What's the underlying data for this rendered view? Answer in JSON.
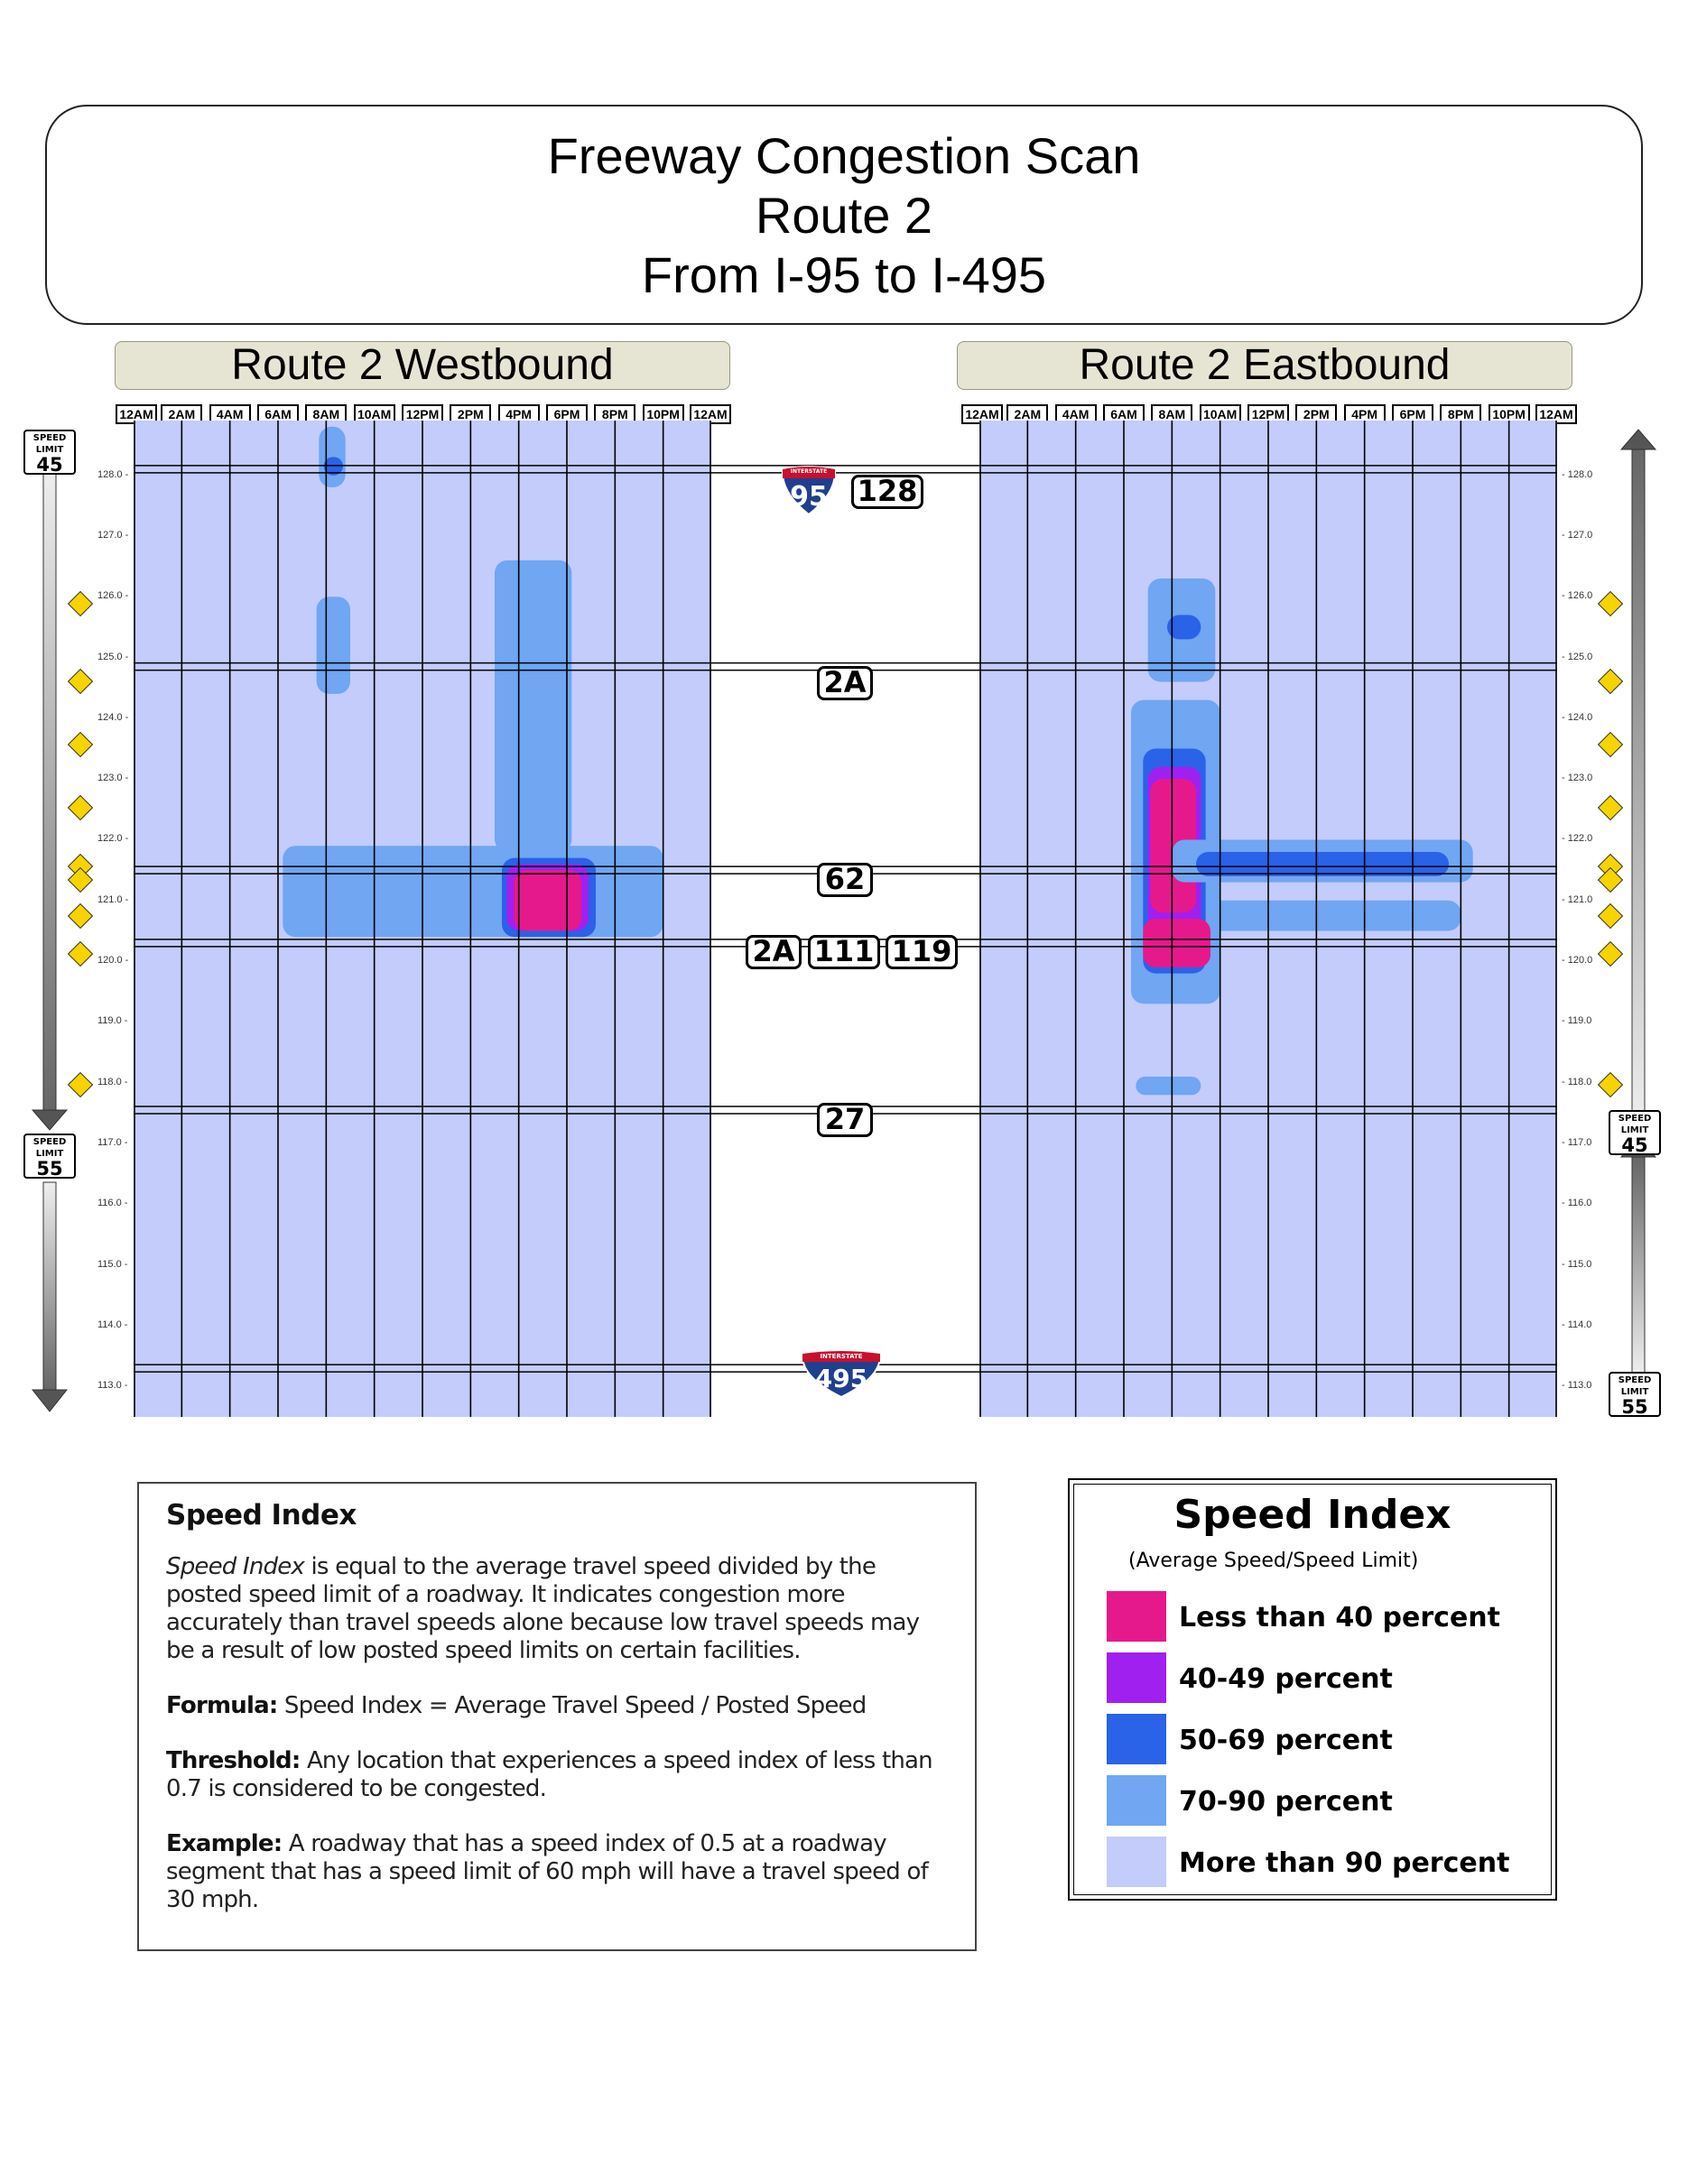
{
  "header": {
    "title_line1": "Freeway Congestion Scan",
    "title_line2": "Route 2",
    "title_line3": "From I-95 to I-495"
  },
  "panels": {
    "westbound_title": "Route 2 Westbound",
    "eastbound_title": "Route 2 Eastbound"
  },
  "route_shields": {
    "i95": "95",
    "i95_banner": "INTERSTATE",
    "i495": "495",
    "i495_banner": "INTERSTATE",
    "exit_128": "128",
    "exit_2a_top": "2A",
    "exit_62": "62",
    "exit_2a_bottom": "2A",
    "exit_111": "111",
    "exit_119": "119",
    "exit_27": "27"
  },
  "speed_signs": {
    "top_label": "SPEED",
    "sub_label": "LIMIT",
    "west_upper": "45",
    "west_lower": "55",
    "east_upper": "45",
    "east_lower": "55"
  },
  "colors": {
    "lt40": "#e6198c",
    "p40_49": "#a020f0",
    "p50_69": "#2a62e8",
    "p70_90": "#70a6f2",
    "gt90": "#c3ccfb",
    "label_bg": "#e6e4d3",
    "interstate_blue": "#1f3f8f",
    "interstate_red": "#c8102e"
  },
  "chart_data": [
    {
      "type": "heatmap",
      "title": "Route 2 Westbound",
      "x_ticks": [
        "12AM",
        "2AM",
        "4AM",
        "6AM",
        "8AM",
        "10AM",
        "12PM",
        "2PM",
        "4PM",
        "6PM",
        "8PM",
        "10PM",
        "12AM"
      ],
      "xlim_hours": [
        0,
        24
      ],
      "milepost_ticks": [
        "128.0",
        "127.0",
        "126.0",
        "125.0",
        "124.0",
        "123.0",
        "122.0",
        "121.0",
        "120.0",
        "119.0",
        "118.0",
        "117.0",
        "116.0",
        "115.0",
        "114.0",
        "113.0"
      ],
      "ylim_milepost": [
        112.5,
        128.9
      ],
      "background_category": "More than 90 percent",
      "congestion_regions": [
        {
          "category": "70-90 percent",
          "hours": [
            7.7,
            8.8
          ],
          "mileposts": [
            127.8,
            128.8
          ]
        },
        {
          "category": "50-69 percent",
          "hours": [
            7.9,
            8.7
          ],
          "mileposts": [
            128.0,
            128.3
          ]
        },
        {
          "category": "70-90 percent",
          "hours": [
            7.6,
            9.0
          ],
          "mileposts": [
            124.4,
            126.0
          ]
        },
        {
          "category": "70-90 percent",
          "hours": [
            15.0,
            18.2
          ],
          "mileposts": [
            121.8,
            126.6
          ]
        },
        {
          "category": "70-90 percent",
          "hours": [
            6.2,
            22.0
          ],
          "mileposts": [
            120.4,
            121.9
          ]
        },
        {
          "category": "50-69 percent",
          "hours": [
            15.3,
            19.2
          ],
          "mileposts": [
            120.4,
            121.7
          ]
        },
        {
          "category": "40-49 percent",
          "hours": [
            15.5,
            18.9
          ],
          "mileposts": [
            120.5,
            121.6
          ]
        },
        {
          "category": "Less than 40 percent",
          "hours": [
            15.8,
            18.6
          ],
          "mileposts": [
            120.5,
            121.5
          ]
        }
      ]
    },
    {
      "type": "heatmap",
      "title": "Route 2 Eastbound",
      "x_ticks": [
        "12AM",
        "2AM",
        "4AM",
        "6AM",
        "8AM",
        "10AM",
        "12PM",
        "2PM",
        "4PM",
        "6PM",
        "8PM",
        "10PM",
        "12AM"
      ],
      "xlim_hours": [
        0,
        24
      ],
      "milepost_ticks": [
        "128.0",
        "127.0",
        "126.0",
        "125.0",
        "124.0",
        "123.0",
        "122.0",
        "121.0",
        "120.0",
        "119.0",
        "118.0",
        "117.0",
        "116.0",
        "115.0",
        "114.0",
        "113.0"
      ],
      "ylim_milepost": [
        112.5,
        128.9
      ],
      "background_category": "More than 90 percent",
      "congestion_regions": [
        {
          "category": "70-90 percent",
          "hours": [
            7.0,
            9.8
          ],
          "mileposts": [
            124.6,
            126.3
          ]
        },
        {
          "category": "50-69 percent",
          "hours": [
            7.8,
            9.2
          ],
          "mileposts": [
            125.3,
            125.7
          ]
        },
        {
          "category": "70-90 percent",
          "hours": [
            6.3,
            10.0
          ],
          "mileposts": [
            119.3,
            124.3
          ]
        },
        {
          "category": "50-69 percent",
          "hours": [
            6.8,
            9.4
          ],
          "mileposts": [
            119.8,
            123.5
          ]
        },
        {
          "category": "40-49 percent",
          "hours": [
            7.0,
            9.2
          ],
          "mileposts": [
            120.0,
            123.2
          ]
        },
        {
          "category": "Less than 40 percent",
          "hours": [
            7.1,
            9.0
          ],
          "mileposts": [
            120.8,
            123.0
          ]
        },
        {
          "category": "Less than 40 percent",
          "hours": [
            6.8,
            9.6
          ],
          "mileposts": [
            119.9,
            120.7
          ]
        },
        {
          "category": "70-90 percent",
          "hours": [
            8.0,
            20.5
          ],
          "mileposts": [
            121.3,
            122.0
          ]
        },
        {
          "category": "50-69 percent",
          "hours": [
            9.0,
            19.5
          ],
          "mileposts": [
            121.4,
            121.8
          ]
        },
        {
          "category": "70-90 percent",
          "hours": [
            9.5,
            20.0
          ],
          "mileposts": [
            120.5,
            121.0
          ]
        },
        {
          "category": "70-90 percent",
          "hours": [
            6.5,
            9.2
          ],
          "mileposts": [
            117.8,
            118.1
          ]
        }
      ]
    }
  ],
  "info": {
    "heading": "Speed Index",
    "def_term": "Speed Index",
    "def_text": " is equal to the average travel speed divided by the posted speed limit of a roadway. It indicates congestion more accurately than travel speeds alone because low travel speeds may be a result of low posted speed limits on certain facilities.",
    "formula_label": "Formula:",
    "formula_text": " Speed Index = Average Travel Speed / Posted Speed",
    "threshold_label": "Threshold:",
    "threshold_text": " Any location that experiences a speed index of less than 0.7 is considered to be congested.",
    "example_label": "Example:",
    "example_text": " A roadway that has a speed index of 0.5 at a roadway segment that has a speed limit of 60 mph will have a travel speed of 30 mph."
  },
  "legend": {
    "title": "Speed Index",
    "subtitle": "(Average Speed/Speed Limit)",
    "items": [
      {
        "label": "Less than 40 percent",
        "color": "#e6198c"
      },
      {
        "label": "40-49 percent",
        "color": "#a020f0"
      },
      {
        "label": "50-69 percent",
        "color": "#2a62e8"
      },
      {
        "label": "70-90 percent",
        "color": "#70a6f2"
      },
      {
        "label": "More than 90 percent",
        "color": "#c3ccfb"
      }
    ]
  }
}
